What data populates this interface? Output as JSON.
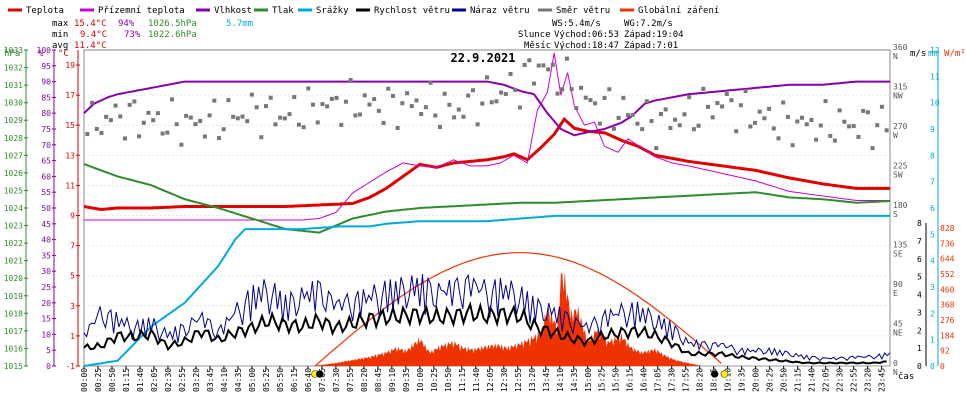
{
  "legend": [
    {
      "label": "Teplota",
      "color": "#e00000"
    },
    {
      "label": "Přízemní teplota",
      "color": "#cc00cc"
    },
    {
      "label": "Vlhkost",
      "color": "#8800aa"
    },
    {
      "label": "Tlak",
      "color": "#2e8b2e"
    },
    {
      "label": "Srážky",
      "color": "#00aadd"
    },
    {
      "label": "Rychlost větru",
      "color": "#000000"
    },
    {
      "label": "Náraz větru",
      "color": "#00008b"
    },
    {
      "label": "Směr větru",
      "color": "#777777"
    },
    {
      "label": "Globální záření",
      "color": "#ee3300"
    }
  ],
  "stats": {
    "max": {
      "label": "max",
      "temp": "15.4°C",
      "hum": "94%",
      "press": "1026.5hPa",
      "rain": "5.7mm"
    },
    "min": {
      "label": "min",
      "temp": "9.4°C",
      "hum": "73%",
      "press": "1022.6hPa"
    },
    "avg": {
      "label": "avg",
      "temp": "11.4°C"
    }
  },
  "info": {
    "ws": "WS:5.4m/s",
    "wg": "WG:7.2m/s",
    "sun_label": "Slunce",
    "sun_rise": "Východ:06:53",
    "sun_set": "Západ:19:04",
    "moon_label": "Měsíc",
    "moon_rise": "Východ:18:47",
    "moon_set": "Západ:7:01"
  },
  "chart_data": {
    "type": "line",
    "title": "22.9.2021",
    "xlabel": "čas",
    "x_ticks": [
      "00:00",
      "00:25",
      "00:50",
      "01:15",
      "01:40",
      "02:05",
      "02:30",
      "02:55",
      "03:20",
      "03:45",
      "04:10",
      "04:35",
      "05:00",
      "05:25",
      "05:50",
      "06:15",
      "06:40",
      "07:05",
      "07:30",
      "07:55",
      "08:20",
      "08:45",
      "09:10",
      "09:35",
      "10:00",
      "10:25",
      "10:50",
      "11:15",
      "11:40",
      "12:05",
      "12:30",
      "12:55",
      "13:20",
      "13:45",
      "14:10",
      "14:35",
      "15:00",
      "15:25",
      "15:50",
      "16:15",
      "16:40",
      "17:05",
      "17:30",
      "17:55",
      "18:20",
      "18:45",
      "19:10",
      "19:35",
      "20:00",
      "20:25",
      "20:50",
      "21:15",
      "21:40",
      "22:05",
      "22:30",
      "22:55",
      "23:20",
      "23:45"
    ],
    "axes": {
      "hpa": {
        "label": "hPa",
        "ticks": [
          "1015",
          "1016",
          "1017",
          "1018",
          "1019",
          "1020",
          "1021",
          "1022",
          "1023",
          "1024",
          "1025",
          "1026",
          "1027",
          "1028",
          "1029",
          "1030",
          "1031",
          "1032",
          "1033"
        ]
      },
      "pct": {
        "label": "%",
        "ticks": [
          "0",
          "5",
          "10",
          "15",
          "20",
          "25",
          "30",
          "35",
          "40",
          "45",
          "50",
          "55",
          "60",
          "65",
          "70",
          "75",
          "80",
          "85",
          "90",
          "95",
          "100"
        ]
      },
      "degc": {
        "label": "°C",
        "ticks": [
          "-1",
          "1",
          "3",
          "5",
          "7",
          "9",
          "11",
          "13",
          "15",
          "17",
          "19"
        ]
      },
      "dir": {
        "ticks": [
          [
            "0",
            "N"
          ],
          [
            "45",
            "NE"
          ],
          [
            "90",
            "E"
          ],
          [
            "135",
            "SE"
          ],
          [
            "180",
            "S"
          ],
          [
            "225",
            "SW"
          ],
          [
            "270",
            "W"
          ],
          [
            "315",
            "NW"
          ],
          [
            "360",
            "N"
          ]
        ]
      },
      "ms": {
        "label": "m/s",
        "ticks": [
          "0",
          "1",
          "2",
          "3",
          "4",
          "5",
          "6",
          "7",
          "8"
        ]
      },
      "mm": {
        "label": "mm",
        "ticks": [
          "0",
          "1",
          "2",
          "3",
          "4",
          "5",
          "6",
          "7",
          "8",
          "9",
          "10",
          "11",
          "12"
        ]
      },
      "wm": {
        "label": "W/m²",
        "ticks": [
          "0",
          "92",
          "184",
          "276",
          "368",
          "460",
          "552",
          "644",
          "736",
          "828"
        ]
      }
    },
    "series": [
      {
        "name": "Teplota",
        "color": "#e00000",
        "unit": "°C",
        "x_hours": [
          0,
          0.5,
          1,
          2,
          3,
          4,
          5,
          6,
          7,
          8,
          8.5,
          9,
          9.5,
          10,
          10.5,
          11,
          11.5,
          12,
          12.5,
          12.8,
          13.2,
          13.6,
          14,
          14.3,
          14.6,
          15,
          15.5,
          16,
          16.5,
          17,
          18,
          19,
          20,
          21,
          22,
          23,
          24
        ],
        "values": [
          9.6,
          9.4,
          9.5,
          9.5,
          9.6,
          9.6,
          9.6,
          9.6,
          9.7,
          9.8,
          10.2,
          10.8,
          11.6,
          12.4,
          12.2,
          12.5,
          12.6,
          12.7,
          12.9,
          13.1,
          12.7,
          13.5,
          14.4,
          15.4,
          14.8,
          14.6,
          14.5,
          14.0,
          13.6,
          13.0,
          12.6,
          12.3,
          12.0,
          11.5,
          11.1,
          10.8,
          10.8
        ]
      },
      {
        "name": "Přízemní teplota",
        "color": "#cc00cc",
        "unit": "°C",
        "x_hours": [
          0,
          1,
          2,
          3,
          4,
          5,
          6,
          6.5,
          7,
          7.5,
          8,
          8.5,
          9,
          9.5,
          10,
          10.5,
          11,
          11.5,
          12,
          12.4,
          12.8,
          13.2,
          13.5,
          13.8,
          14,
          14.2,
          14.4,
          14.6,
          14.9,
          15.2,
          15.5,
          15.9,
          16.2,
          16.6,
          17,
          17.5,
          18,
          19,
          20,
          21,
          22,
          23,
          24
        ],
        "values": [
          8.7,
          8.7,
          8.7,
          8.7,
          8.7,
          8.7,
          8.7,
          8.7,
          8.8,
          9.2,
          10.5,
          11.2,
          11.9,
          12.5,
          12.3,
          12.2,
          12.7,
          12.3,
          12.3,
          12.5,
          13.0,
          12.5,
          16.0,
          17.2,
          19.8,
          17.0,
          18.5,
          16.3,
          15.0,
          15.2,
          13.6,
          13.2,
          14.1,
          13.5,
          12.9,
          12.5,
          12.3,
          11.8,
          11.3,
          10.6,
          10.3,
          10.0,
          10.0
        ]
      },
      {
        "name": "Vlhkost",
        "color": "#8800aa",
        "unit": "%",
        "x_hours": [
          0,
          0.3,
          0.7,
          1,
          1.5,
          2,
          2.5,
          3,
          4,
          5,
          6,
          7,
          8,
          9,
          10,
          11,
          12,
          12.5,
          13,
          13.4,
          13.8,
          14.2,
          14.6,
          15,
          15.5,
          16,
          16.3,
          16.7,
          17,
          18,
          19,
          20,
          21,
          22,
          23,
          24
        ],
        "values": [
          80,
          83,
          85,
          86,
          87,
          88,
          89,
          90,
          90,
          90,
          90,
          90,
          90,
          90,
          90,
          90,
          90,
          89,
          87,
          86,
          80,
          75,
          73,
          74,
          75,
          77,
          79,
          83,
          84,
          86,
          87,
          88,
          89,
          89,
          90,
          90
        ]
      },
      {
        "name": "Tlak",
        "color": "#2e8b2e",
        "unit": "hPa",
        "x_hours": [
          0,
          1,
          2,
          3,
          4,
          5,
          6,
          7,
          8,
          9,
          10,
          11,
          12,
          13,
          14,
          15,
          16,
          17,
          18,
          19,
          20,
          21,
          22,
          23,
          24
        ],
        "values": [
          1026.5,
          1025.8,
          1025.3,
          1024.5,
          1024.0,
          1023.4,
          1022.8,
          1022.6,
          1023.4,
          1023.8,
          1024.0,
          1024.1,
          1024.2,
          1024.3,
          1024.3,
          1024.4,
          1024.5,
          1024.6,
          1024.7,
          1024.8,
          1024.9,
          1024.6,
          1024.5,
          1024.3,
          1024.4
        ]
      },
      {
        "name": "Srážky",
        "color": "#00aadd",
        "unit": "mm",
        "x_hours": [
          0,
          1,
          2,
          3,
          4,
          4.5,
          4.8,
          6.5,
          7.6,
          8.5,
          9,
          10,
          11,
          12,
          13,
          14,
          15,
          17,
          19,
          21,
          23,
          24
        ],
        "values": [
          0,
          0.2,
          1.5,
          2.4,
          3.8,
          4.8,
          5.2,
          5.2,
          5.3,
          5.3,
          5.4,
          5.5,
          5.5,
          5.5,
          5.6,
          5.7,
          5.7,
          5.7,
          5.7,
          5.7,
          5.7,
          5.7
        ]
      }
    ],
    "wind_speed": {
      "name": "Rychlost větru",
      "color": "#000000",
      "unit": "m/s",
      "x_hours": [
        0,
        0.5,
        1,
        1.5,
        2,
        2.5,
        3,
        3.5,
        4,
        4.5,
        5,
        5.5,
        6,
        6.5,
        7,
        7.5,
        8,
        8.5,
        9,
        9.5,
        10,
        10.5,
        11,
        11.5,
        12,
        12.5,
        13,
        13.5,
        14,
        14.5,
        15,
        15.5,
        16,
        16.5,
        17,
        17.5,
        18,
        18.5,
        19,
        19.5,
        20,
        20.5,
        21,
        21.5,
        22,
        22.5,
        23,
        23.5,
        24
      ],
      "values": [
        1.2,
        1.3,
        2.0,
        1.9,
        2.1,
        1.3,
        1.6,
        2.3,
        1.7,
        2.2,
        2.5,
        3.0,
        2.7,
        2.6,
        3.0,
        2.5,
        2.8,
        3.1,
        3.2,
        3.3,
        3.4,
        3.2,
        3.3,
        3.5,
        3.3,
        3.4,
        3.3,
        2.5,
        2.2,
        1.8,
        1.6,
        2.0,
        2.2,
        2.3,
        2.0,
        1.5,
        0.8,
        0.8,
        0.8,
        0.6,
        0.5,
        0.4,
        0.3,
        0.2,
        0.2,
        0.2,
        0.2,
        0.2,
        0.3
      ]
    },
    "wind_gust": {
      "name": "Náraz větru",
      "color": "#00008b",
      "unit": "m/s",
      "x_hours": [
        0,
        0.5,
        1,
        1.5,
        2,
        2.5,
        3,
        3.5,
        4,
        4.5,
        5,
        5.5,
        6,
        6.5,
        7,
        7.5,
        8,
        8.5,
        9,
        9.5,
        10,
        10.5,
        11,
        11.5,
        12,
        12.5,
        13,
        13.5,
        14,
        14.5,
        15,
        15.5,
        16,
        16.5,
        17,
        17.5,
        18,
        18.5,
        19,
        19.5,
        20,
        20.5,
        21,
        21.5,
        22,
        22.5,
        23,
        23.5,
        24
      ],
      "values": [
        2.0,
        3.5,
        3.0,
        2.5,
        2.8,
        2.0,
        2.5,
        3.2,
        2.2,
        3.5,
        4.5,
        5.0,
        4.0,
        4.5,
        5.0,
        4.0,
        4.2,
        4.5,
        4.8,
        5.0,
        5.2,
        4.8,
        5.0,
        5.4,
        4.8,
        5.0,
        4.5,
        3.8,
        3.5,
        3.0,
        2.5,
        3.2,
        3.5,
        3.6,
        3.0,
        2.5,
        1.5,
        1.4,
        1.4,
        1.0,
        1.0,
        1.0,
        0.8,
        0.6,
        0.5,
        0.5,
        0.6,
        0.6,
        0.8
      ]
    },
    "wind_dir": {
      "name": "Směr větru",
      "color": "#777777",
      "unit": "°",
      "x_hours": [
        0,
        1,
        2,
        3,
        4,
        5,
        6,
        7,
        8,
        9,
        10,
        11,
        12,
        13,
        13.5,
        14,
        14.5,
        15,
        16,
        17,
        18,
        19,
        20,
        21,
        22,
        23,
        24
      ],
      "values": [
        270,
        285,
        280,
        275,
        280,
        290,
        285,
        295,
        300,
        295,
        300,
        290,
        305,
        320,
        345,
        330,
        320,
        300,
        290,
        275,
        285,
        300,
        285,
        275,
        275,
        275,
        275
      ]
    },
    "radiation": {
      "name": "Globální záření",
      "color": "#ee3300",
      "unit": "W/m²",
      "x_hours": [
        6.8,
        7.5,
        8,
        8.5,
        9,
        9.3,
        9.6,
        10,
        10.3,
        10.6,
        11,
        11.3,
        11.6,
        12,
        12.3,
        12.6,
        13,
        13.3,
        13.6,
        13.8,
        14,
        14.1,
        14.2,
        14.3,
        14.5,
        14.7,
        15,
        15.3,
        15.6,
        16,
        16.3,
        16.6,
        17,
        17.3,
        17.6,
        18,
        18.4
      ],
      "values": [
        0,
        20,
        40,
        60,
        90,
        120,
        100,
        180,
        90,
        130,
        160,
        120,
        110,
        130,
        140,
        120,
        150,
        180,
        220,
        380,
        300,
        240,
        600,
        590,
        340,
        380,
        160,
        250,
        160,
        200,
        120,
        90,
        110,
        70,
        40,
        20,
        0
      ]
    },
    "clear_sky": {
      "name": "Globální záření",
      "color": "#ee3300",
      "unit": "W/m²",
      "sunrise_h": 6.88,
      "sunset_h": 19.07,
      "peak": 680
    },
    "markers": [
      {
        "type": "sun",
        "x_hours": 6.88,
        "color": "#ffee00"
      },
      {
        "type": "moon",
        "x_hours": 7.02,
        "color": "#000000"
      },
      {
        "type": "moon",
        "x_hours": 18.78,
        "color": "#000000"
      },
      {
        "type": "sun",
        "x_hours": 19.07,
        "color": "#ffee00"
      }
    ]
  }
}
